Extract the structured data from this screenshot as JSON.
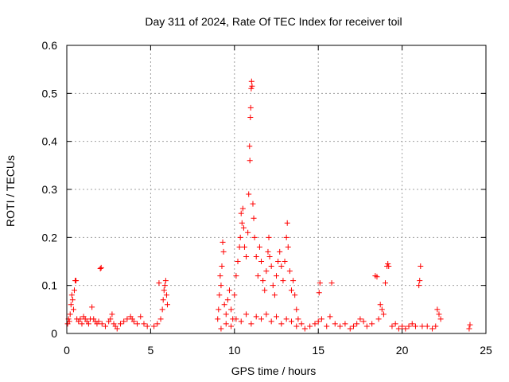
{
  "chart_data": {
    "type": "scatter",
    "title": "Day 311 of 2024, Rate Of TEC Index for receiver toil",
    "xlabel": "GPS time / hours",
    "ylabel": "ROTI / TECUs",
    "xlim": [
      0,
      25
    ],
    "ylim": [
      0,
      0.6
    ],
    "xticks": [
      0,
      5,
      10,
      15,
      20,
      25
    ],
    "xtick_labels": [
      "0",
      "5",
      "10",
      "15",
      "20",
      "25"
    ],
    "yticks": [
      0,
      0.1,
      0.2,
      0.3,
      0.4,
      0.5,
      0.6
    ],
    "ytick_labels": [
      "0",
      "0.1",
      "0.2",
      "0.3",
      "0.4",
      "0.5",
      "0.6"
    ],
    "grid": true,
    "marker": "plus",
    "color": "#ff0000",
    "series": [
      {
        "name": "ROTI",
        "points": [
          [
            0.05,
            0.02
          ],
          [
            0.1,
            0.03
          ],
          [
            0.15,
            0.025
          ],
          [
            0.2,
            0.04
          ],
          [
            0.25,
            0.06
          ],
          [
            0.3,
            0.08
          ],
          [
            0.35,
            0.07
          ],
          [
            0.4,
            0.05
          ],
          [
            0.45,
            0.09
          ],
          [
            0.5,
            0.11
          ],
          [
            0.55,
            0.11
          ],
          [
            0.6,
            0.03
          ],
          [
            0.7,
            0.025
          ],
          [
            0.8,
            0.03
          ],
          [
            0.9,
            0.02
          ],
          [
            1.0,
            0.035
          ],
          [
            1.1,
            0.03
          ],
          [
            1.2,
            0.025
          ],
          [
            1.3,
            0.02
          ],
          [
            1.4,
            0.03
          ],
          [
            1.5,
            0.055
          ],
          [
            1.6,
            0.03
          ],
          [
            1.7,
            0.025
          ],
          [
            1.8,
            0.02
          ],
          [
            1.9,
            0.025
          ],
          [
            2.0,
            0.135
          ],
          [
            2.05,
            0.137
          ],
          [
            2.1,
            0.02
          ],
          [
            2.3,
            0.015
          ],
          [
            2.5,
            0.025
          ],
          [
            2.6,
            0.03
          ],
          [
            2.7,
            0.04
          ],
          [
            2.8,
            0.02
          ],
          [
            2.9,
            0.015
          ],
          [
            3.0,
            0.01
          ],
          [
            3.2,
            0.02
          ],
          [
            3.4,
            0.025
          ],
          [
            3.6,
            0.03
          ],
          [
            3.8,
            0.035
          ],
          [
            3.9,
            0.03
          ],
          [
            4.0,
            0.025
          ],
          [
            4.2,
            0.02
          ],
          [
            4.4,
            0.035
          ],
          [
            4.6,
            0.02
          ],
          [
            4.8,
            0.015
          ],
          [
            5.2,
            0.015
          ],
          [
            5.4,
            0.02
          ],
          [
            5.5,
            0.105
          ],
          [
            5.6,
            0.03
          ],
          [
            5.7,
            0.05
          ],
          [
            5.75,
            0.07
          ],
          [
            5.8,
            0.09
          ],
          [
            5.85,
            0.1
          ],
          [
            5.9,
            0.11
          ],
          [
            5.95,
            0.08
          ],
          [
            6.0,
            0.06
          ],
          [
            9.0,
            0.03
          ],
          [
            9.05,
            0.05
          ],
          [
            9.1,
            0.08
          ],
          [
            9.15,
            0.12
          ],
          [
            9.2,
            0.1
          ],
          [
            9.25,
            0.14
          ],
          [
            9.3,
            0.19
          ],
          [
            9.35,
            0.17
          ],
          [
            9.4,
            0.06
          ],
          [
            9.5,
            0.04
          ],
          [
            9.6,
            0.07
          ],
          [
            9.7,
            0.09
          ],
          [
            9.8,
            0.05
          ],
          [
            9.9,
            0.03
          ],
          [
            10.0,
            0.08
          ],
          [
            10.1,
            0.12
          ],
          [
            10.2,
            0.15
          ],
          [
            10.3,
            0.18
          ],
          [
            10.35,
            0.2
          ],
          [
            10.4,
            0.25
          ],
          [
            10.45,
            0.23
          ],
          [
            10.5,
            0.26
          ],
          [
            10.55,
            0.22
          ],
          [
            10.6,
            0.18
          ],
          [
            10.7,
            0.16
          ],
          [
            10.8,
            0.21
          ],
          [
            10.85,
            0.29
          ],
          [
            10.9,
            0.39
          ],
          [
            10.92,
            0.36
          ],
          [
            10.95,
            0.45
          ],
          [
            10.97,
            0.47
          ],
          [
            11.0,
            0.51
          ],
          [
            11.02,
            0.525
          ],
          [
            11.05,
            0.515
          ],
          [
            11.1,
            0.27
          ],
          [
            11.15,
            0.24
          ],
          [
            11.2,
            0.2
          ],
          [
            11.3,
            0.16
          ],
          [
            11.4,
            0.12
          ],
          [
            11.5,
            0.18
          ],
          [
            11.6,
            0.15
          ],
          [
            11.7,
            0.11
          ],
          [
            11.8,
            0.09
          ],
          [
            11.9,
            0.13
          ],
          [
            12.0,
            0.17
          ],
          [
            12.05,
            0.2
          ],
          [
            12.1,
            0.16
          ],
          [
            12.2,
            0.14
          ],
          [
            12.3,
            0.1
          ],
          [
            12.4,
            0.08
          ],
          [
            12.5,
            0.12
          ],
          [
            12.6,
            0.15
          ],
          [
            12.7,
            0.17
          ],
          [
            12.8,
            0.14
          ],
          [
            12.9,
            0.11
          ],
          [
            13.0,
            0.15
          ],
          [
            13.1,
            0.2
          ],
          [
            13.15,
            0.23
          ],
          [
            13.2,
            0.18
          ],
          [
            13.3,
            0.13
          ],
          [
            13.4,
            0.09
          ],
          [
            13.5,
            0.11
          ],
          [
            13.6,
            0.08
          ],
          [
            13.7,
            0.05
          ],
          [
            13.8,
            0.03
          ],
          [
            9.2,
            0.01
          ],
          [
            9.5,
            0.02
          ],
          [
            9.8,
            0.015
          ],
          [
            10.1,
            0.03
          ],
          [
            10.4,
            0.025
          ],
          [
            10.7,
            0.04
          ],
          [
            11.0,
            0.02
          ],
          [
            11.3,
            0.035
          ],
          [
            11.6,
            0.03
          ],
          [
            11.9,
            0.04
          ],
          [
            12.2,
            0.025
          ],
          [
            12.5,
            0.035
          ],
          [
            12.8,
            0.02
          ],
          [
            13.1,
            0.03
          ],
          [
            13.4,
            0.025
          ],
          [
            13.7,
            0.015
          ],
          [
            14.0,
            0.02
          ],
          [
            14.2,
            0.01
          ],
          [
            14.5,
            0.015
          ],
          [
            14.8,
            0.02
          ],
          [
            15.0,
            0.025
          ],
          [
            15.05,
            0.085
          ],
          [
            15.1,
            0.105
          ],
          [
            15.2,
            0.03
          ],
          [
            15.5,
            0.015
          ],
          [
            15.7,
            0.035
          ],
          [
            15.8,
            0.105
          ],
          [
            16.0,
            0.02
          ],
          [
            16.3,
            0.015
          ],
          [
            16.6,
            0.02
          ],
          [
            16.9,
            0.01
          ],
          [
            17.1,
            0.015
          ],
          [
            17.3,
            0.02
          ],
          [
            17.5,
            0.03
          ],
          [
            17.7,
            0.025
          ],
          [
            17.9,
            0.015
          ],
          [
            18.2,
            0.02
          ],
          [
            18.4,
            0.12
          ],
          [
            18.5,
            0.118
          ],
          [
            18.6,
            0.03
          ],
          [
            18.7,
            0.06
          ],
          [
            18.8,
            0.05
          ],
          [
            18.9,
            0.04
          ],
          [
            19.0,
            0.105
          ],
          [
            19.1,
            0.14
          ],
          [
            19.15,
            0.145
          ],
          [
            19.2,
            0.14
          ],
          [
            19.4,
            0.015
          ],
          [
            19.6,
            0.02
          ],
          [
            19.8,
            0.01
          ],
          [
            20.0,
            0.015
          ],
          [
            20.2,
            0.01
          ],
          [
            20.4,
            0.015
          ],
          [
            20.6,
            0.02
          ],
          [
            20.8,
            0.015
          ],
          [
            21.0,
            0.1
          ],
          [
            21.05,
            0.11
          ],
          [
            21.1,
            0.14
          ],
          [
            21.2,
            0.015
          ],
          [
            21.5,
            0.015
          ],
          [
            21.8,
            0.01
          ],
          [
            22.0,
            0.015
          ],
          [
            22.1,
            0.05
          ],
          [
            22.2,
            0.04
          ],
          [
            22.3,
            0.03
          ],
          [
            24.0,
            0.01
          ],
          [
            24.05,
            0.018
          ]
        ]
      }
    ]
  }
}
